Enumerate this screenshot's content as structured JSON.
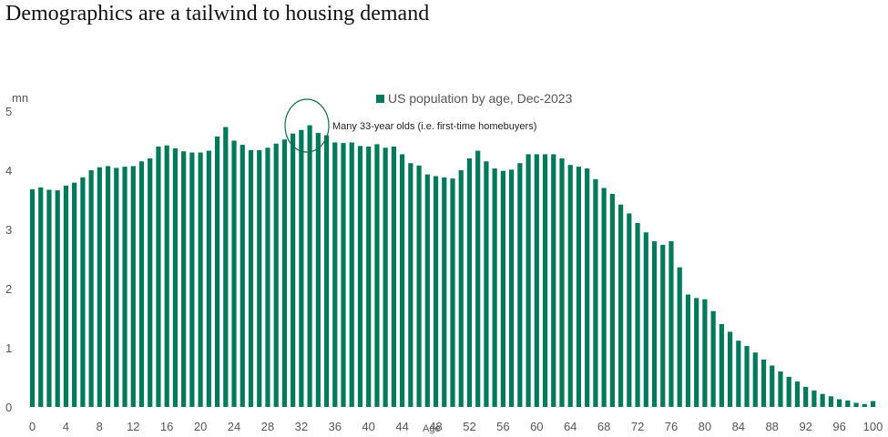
{
  "title": "Demographics are a tailwind to housing demand",
  "colors": {
    "bar": "#007A5A",
    "circle": "#0E6B4B",
    "text": "#555555"
  },
  "chart_data": {
    "type": "bar",
    "ylabel": "mn",
    "xlabel": "Age",
    "ylim": [
      0,
      5
    ],
    "yticks": [
      0,
      1,
      2,
      3,
      4,
      5
    ],
    "xticks": [
      0,
      4,
      8,
      12,
      16,
      20,
      24,
      28,
      32,
      36,
      40,
      44,
      48,
      52,
      56,
      60,
      64,
      68,
      72,
      76,
      80,
      84,
      88,
      92,
      96,
      100
    ],
    "xtick_labels": [
      "0",
      "4",
      "8",
      "12",
      "16",
      "20",
      "24",
      "28",
      "32",
      "36",
      "40",
      "44",
      "48",
      "52",
      "56",
      "60",
      "64",
      "68",
      "72",
      "76",
      "80",
      "84",
      "88",
      "92",
      "96",
      "100"
    ],
    "grid": false,
    "legend": "top-center",
    "series": [
      {
        "name": "US population by age, Dec-2023",
        "x": [
          0,
          1,
          2,
          3,
          4,
          5,
          6,
          7,
          8,
          9,
          10,
          11,
          12,
          13,
          14,
          15,
          16,
          17,
          18,
          19,
          20,
          21,
          22,
          23,
          24,
          25,
          26,
          27,
          28,
          29,
          30,
          31,
          32,
          33,
          34,
          35,
          36,
          37,
          38,
          39,
          40,
          41,
          42,
          43,
          44,
          45,
          46,
          47,
          48,
          49,
          50,
          51,
          52,
          53,
          54,
          55,
          56,
          57,
          58,
          59,
          60,
          61,
          62,
          63,
          64,
          65,
          66,
          67,
          68,
          69,
          70,
          71,
          72,
          73,
          74,
          75,
          76,
          77,
          78,
          79,
          80,
          81,
          82,
          83,
          84,
          85,
          86,
          87,
          88,
          89,
          90,
          91,
          92,
          93,
          94,
          95,
          96,
          97,
          98,
          99,
          100
        ],
        "values": [
          3.68,
          3.71,
          3.67,
          3.66,
          3.74,
          3.79,
          3.88,
          4.0,
          4.05,
          4.07,
          4.04,
          4.06,
          4.07,
          4.15,
          4.2,
          4.4,
          4.42,
          4.37,
          4.32,
          4.3,
          4.3,
          4.33,
          4.57,
          4.73,
          4.5,
          4.43,
          4.34,
          4.34,
          4.38,
          4.45,
          4.52,
          4.62,
          4.68,
          4.76,
          4.63,
          4.59,
          4.47,
          4.46,
          4.47,
          4.41,
          4.4,
          4.44,
          4.38,
          4.4,
          4.27,
          4.12,
          4.08,
          3.93,
          3.9,
          3.88,
          3.86,
          4.0,
          4.2,
          4.33,
          4.15,
          4.03,
          3.99,
          4.01,
          4.12,
          4.27,
          4.27,
          4.27,
          4.27,
          4.2,
          4.09,
          4.06,
          4.03,
          3.85,
          3.7,
          3.6,
          3.42,
          3.27,
          3.11,
          2.95,
          2.8,
          2.74,
          2.8,
          2.36,
          1.9,
          1.84,
          1.82,
          1.62,
          1.4,
          1.27,
          1.12,
          1.03,
          0.92,
          0.8,
          0.7,
          0.6,
          0.51,
          0.43,
          0.34,
          0.28,
          0.22,
          0.18,
          0.13,
          0.11,
          0.07,
          0.05,
          0.1
        ]
      }
    ],
    "annotations": [
      {
        "text": "Many 33-year olds (i.e. first-time homebuyers)",
        "x": 33
      }
    ]
  }
}
